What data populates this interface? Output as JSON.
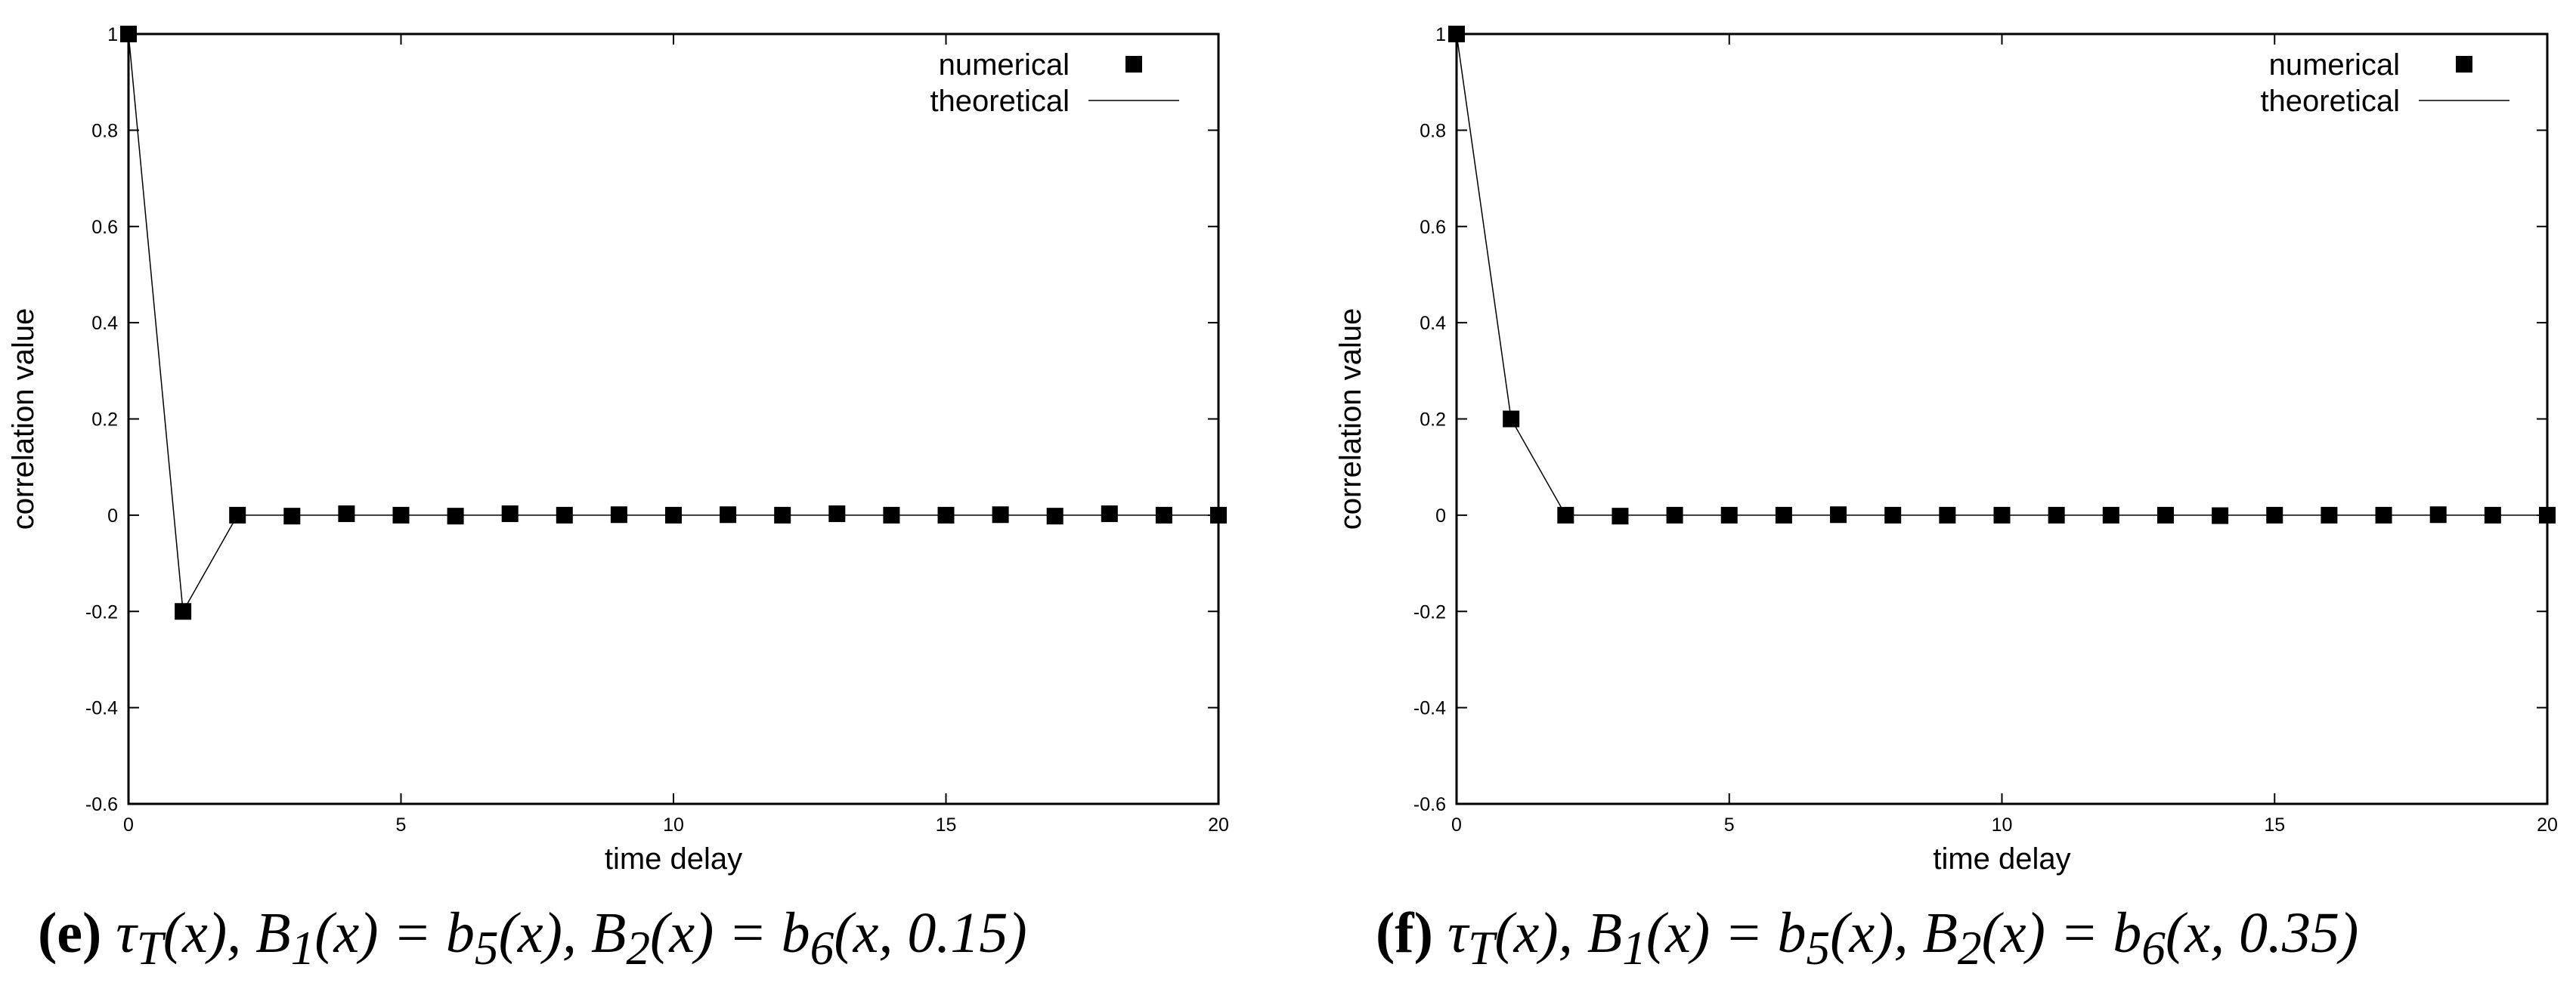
{
  "chart_data": [
    {
      "type": "scatter",
      "xlabel": "time delay",
      "ylabel": "correlation value",
      "xlim": [
        0,
        20
      ],
      "ylim": [
        -0.6,
        1
      ],
      "xticks": [
        "0",
        "5",
        "10",
        "15",
        "20"
      ],
      "yticks": [
        "-0.6",
        "-0.4",
        "-0.2",
        "0",
        "0.2",
        "0.4",
        "0.6",
        "0.8",
        "1"
      ],
      "legend_position": "top-right",
      "series": [
        {
          "name": "numerical",
          "marker": "square",
          "x": [
            0,
            1,
            2,
            3,
            4,
            5,
            6,
            7,
            8,
            9,
            10,
            11,
            12,
            13,
            14,
            15,
            16,
            17,
            18,
            19,
            20
          ],
          "values": [
            1,
            -0.2,
            0,
            -0.002,
            0.003,
            0,
            -0.002,
            0.003,
            0,
            0.001,
            0,
            0.001,
            0,
            0.003,
            0,
            0,
            0.001,
            -0.002,
            0.003,
            0,
            0
          ]
        },
        {
          "name": "theoretical",
          "marker": "line",
          "x": [
            0,
            1,
            2,
            3,
            4,
            5,
            6,
            7,
            8,
            9,
            10,
            11,
            12,
            13,
            14,
            15,
            16,
            17,
            18,
            19,
            20
          ],
          "values": [
            1,
            -0.2,
            0,
            0,
            0,
            0,
            0,
            0,
            0,
            0,
            0,
            0,
            0,
            0,
            0,
            0,
            0,
            0,
            0,
            0,
            0
          ]
        }
      ],
      "caption": {
        "tag": "(e)",
        "text_a": "τ",
        "sub_a": "T",
        "text_b": "(x), B",
        "sub_b": "1",
        "text_c": "(x) = b",
        "sub_c": "5",
        "text_d": "(x), B",
        "sub_d": "2",
        "text_e": "(x) = b",
        "sub_e": "6",
        "text_f": "(x, 0.15)"
      }
    },
    {
      "type": "scatter",
      "xlabel": "time delay",
      "ylabel": "correlation value",
      "xlim": [
        0,
        20
      ],
      "ylim": [
        -0.6,
        1
      ],
      "xticks": [
        "0",
        "5",
        "10",
        "15",
        "20"
      ],
      "yticks": [
        "-0.6",
        "-0.4",
        "-0.2",
        "0",
        "0.2",
        "0.4",
        "0.6",
        "0.8",
        "1"
      ],
      "legend_position": "top-right",
      "series": [
        {
          "name": "numerical",
          "marker": "square",
          "x": [
            0,
            1,
            2,
            3,
            4,
            5,
            6,
            7,
            8,
            9,
            10,
            11,
            12,
            13,
            14,
            15,
            16,
            17,
            18,
            19,
            20
          ],
          "values": [
            1,
            0.2,
            0,
            -0.002,
            0,
            0,
            0,
            0.001,
            0,
            0,
            0,
            0,
            0,
            0,
            -0.001,
            0,
            0,
            0,
            0.001,
            0,
            0
          ]
        },
        {
          "name": "theoretical",
          "marker": "line",
          "x": [
            0,
            1,
            2,
            3,
            4,
            5,
            6,
            7,
            8,
            9,
            10,
            11,
            12,
            13,
            14,
            15,
            16,
            17,
            18,
            19,
            20
          ],
          "values": [
            1,
            0.2,
            0,
            0,
            0,
            0,
            0,
            0,
            0,
            0,
            0,
            0,
            0,
            0,
            0,
            0,
            0,
            0,
            0,
            0,
            0
          ]
        }
      ],
      "caption": {
        "tag": "(f)",
        "text_a": "τ",
        "sub_a": "T",
        "text_b": "(x), B",
        "sub_b": "1",
        "text_c": "(x) = b",
        "sub_c": "5",
        "text_d": "(x), B",
        "sub_d": "2",
        "text_e": "(x) = b",
        "sub_e": "6",
        "text_f": "(x, 0.35)"
      }
    }
  ]
}
